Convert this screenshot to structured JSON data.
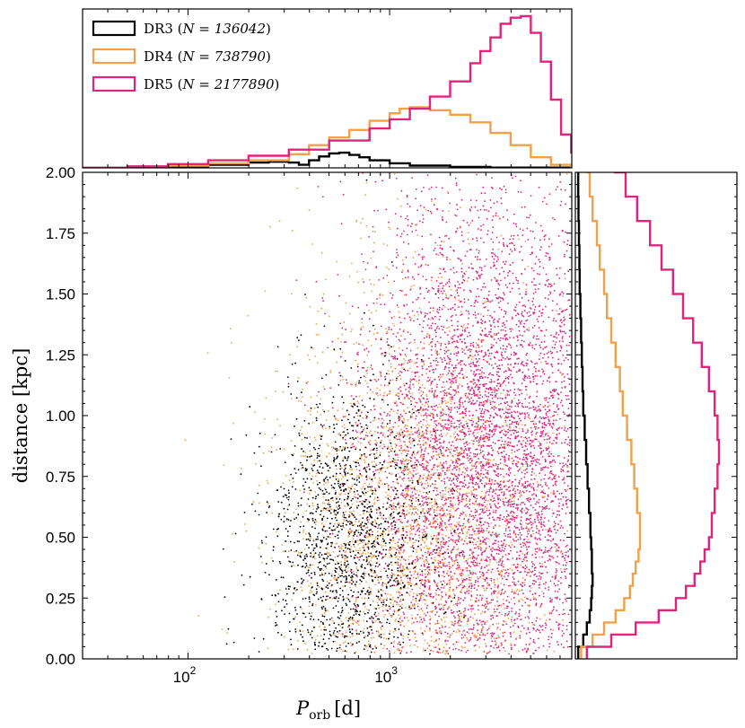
{
  "chart_data": {
    "type": "scatter",
    "x_label_main": "P",
    "x_label_sub": "orb",
    "x_label_unit": "[d]",
    "ylabel": "distance [kpc]",
    "xscale": "log",
    "xlim": [
      30,
      8000
    ],
    "ylim": [
      0,
      2.0
    ],
    "x_ticks": [
      {
        "base": "10",
        "exp": "2",
        "value": 100
      },
      {
        "base": "10",
        "exp": "3",
        "value": 1000
      }
    ],
    "y_ticks": [
      {
        "label": "0.00",
        "value": 0.0
      },
      {
        "label": "0.25",
        "value": 0.25
      },
      {
        "label": "0.50",
        "value": 0.5
      },
      {
        "label": "0.75",
        "value": 0.75
      },
      {
        "label": "1.00",
        "value": 1.0
      },
      {
        "label": "1.25",
        "value": 1.25
      },
      {
        "label": "1.50",
        "value": 1.5
      },
      {
        "label": "1.75",
        "value": 1.75
      },
      {
        "label": "2.00",
        "value": 2.0
      }
    ],
    "legend_position": "top-left",
    "series": [
      {
        "release": "DR3",
        "n_label": "N = 136042",
        "color": "#000000",
        "logp_mean": 2.78,
        "logp_sd": 0.2,
        "dist_peak": 0.45,
        "dist_sd": 0.35,
        "hist_period_logx": [
          1.48,
          1.7,
          1.9,
          2.1,
          2.3,
          2.4,
          2.5,
          2.55,
          2.6,
          2.65,
          2.7,
          2.75,
          2.8,
          2.85,
          2.9,
          3.0,
          3.1,
          3.3,
          3.5,
          3.9
        ],
        "hist_period_frac": [
          0.0,
          0.004,
          0.01,
          0.02,
          0.035,
          0.04,
          0.035,
          0.02,
          0.05,
          0.075,
          0.095,
          0.1,
          0.085,
          0.07,
          0.05,
          0.03,
          0.015,
          0.006,
          0.002,
          0.0
        ],
        "hist_dist_y": [
          0.0,
          0.05,
          0.1,
          0.15,
          0.2,
          0.25,
          0.3,
          0.35,
          0.4,
          0.45,
          0.5,
          0.6,
          0.7,
          0.8,
          0.9,
          1.0,
          1.1,
          1.2,
          1.3,
          1.4,
          1.5,
          1.6,
          1.7,
          1.8,
          1.9,
          2.0
        ],
        "hist_dist_frac": [
          0.02,
          0.055,
          0.08,
          0.1,
          0.11,
          0.115,
          0.12,
          0.115,
          0.115,
          0.11,
          0.105,
          0.095,
          0.085,
          0.075,
          0.065,
          0.055,
          0.05,
          0.045,
          0.04,
          0.035,
          0.03,
          0.028,
          0.025,
          0.022,
          0.02,
          0.02
        ]
      },
      {
        "release": "DR4",
        "n_label": "N = 738790",
        "color": "#f2a14a",
        "logp_mean": 3.1,
        "logp_sd": 0.33,
        "dist_peak": 0.5,
        "dist_sd": 0.55,
        "hist_period_logx": [
          1.48,
          1.7,
          1.9,
          2.1,
          2.3,
          2.5,
          2.6,
          2.7,
          2.8,
          2.9,
          3.0,
          3.05,
          3.1,
          3.2,
          3.3,
          3.4,
          3.5,
          3.6,
          3.7,
          3.8,
          3.9
        ],
        "hist_period_frac": [
          0.0,
          0.006,
          0.015,
          0.03,
          0.05,
          0.09,
          0.15,
          0.2,
          0.25,
          0.31,
          0.36,
          0.39,
          0.4,
          0.38,
          0.35,
          0.3,
          0.23,
          0.15,
          0.07,
          0.02,
          0.0
        ],
        "hist_dist_y": [
          0.0,
          0.05,
          0.1,
          0.15,
          0.2,
          0.25,
          0.3,
          0.35,
          0.4,
          0.45,
          0.5,
          0.6,
          0.7,
          0.8,
          0.9,
          1.0,
          1.1,
          1.2,
          1.3,
          1.4,
          1.5,
          1.6,
          1.7,
          1.8,
          1.9,
          2.0
        ],
        "hist_dist_frac": [
          0.04,
          0.12,
          0.2,
          0.28,
          0.34,
          0.38,
          0.4,
          0.42,
          0.44,
          0.45,
          0.45,
          0.43,
          0.41,
          0.39,
          0.36,
          0.33,
          0.31,
          0.28,
          0.25,
          0.22,
          0.2,
          0.17,
          0.15,
          0.12,
          0.1,
          0.08
        ]
      },
      {
        "release": "DR5",
        "n_label": "N = 2177890",
        "color": "#e0247a",
        "logp_mean": 3.45,
        "logp_sd": 0.28,
        "dist_peak": 0.8,
        "dist_sd": 0.6,
        "hist_period_logx": [
          1.48,
          1.7,
          1.9,
          2.1,
          2.3,
          2.5,
          2.7,
          2.9,
          3.0,
          3.1,
          3.2,
          3.3,
          3.4,
          3.45,
          3.5,
          3.55,
          3.6,
          3.65,
          3.7,
          3.75,
          3.8,
          3.85,
          3.9
        ],
        "hist_period_frac": [
          0.0,
          0.01,
          0.025,
          0.05,
          0.08,
          0.12,
          0.18,
          0.26,
          0.32,
          0.39,
          0.47,
          0.57,
          0.69,
          0.77,
          0.86,
          0.95,
          0.99,
          1.0,
          0.89,
          0.7,
          0.45,
          0.22,
          0.1
        ],
        "hist_dist_y": [
          0.0,
          0.05,
          0.1,
          0.15,
          0.2,
          0.25,
          0.3,
          0.35,
          0.4,
          0.45,
          0.5,
          0.6,
          0.7,
          0.8,
          0.9,
          1.0,
          1.1,
          1.2,
          1.3,
          1.4,
          1.5,
          1.6,
          1.7,
          1.8,
          1.9,
          2.0
        ],
        "hist_dist_frac": [
          0.08,
          0.25,
          0.42,
          0.58,
          0.7,
          0.77,
          0.83,
          0.87,
          0.9,
          0.93,
          0.95,
          0.97,
          0.99,
          1.0,
          0.99,
          0.97,
          0.93,
          0.88,
          0.82,
          0.75,
          0.68,
          0.6,
          0.52,
          0.43,
          0.35,
          0.27
        ]
      }
    ]
  }
}
